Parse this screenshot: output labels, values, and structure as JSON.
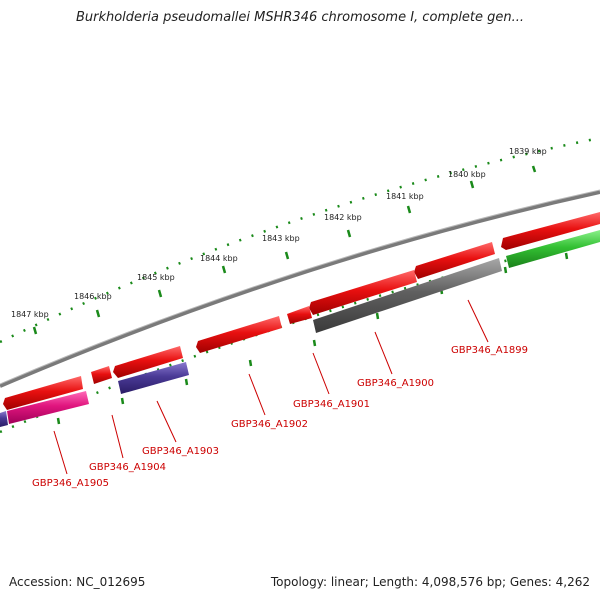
{
  "title": "Burkholderia pseudomallei MSHR346 chromosome I, complete gen...",
  "footer": {
    "accession": "Accession: NC_012695",
    "topology": "Topology: linear; Length: 4,098,576 bp; Genes: 4,262"
  },
  "colors": {
    "backbone": "#808080",
    "tick": "#1a8a1a",
    "label": "#cc0000",
    "red": "#e81010",
    "magenta": "#e0157e",
    "purple": "#4a3a96",
    "gray": "#606060",
    "green": "#33c033"
  },
  "kbp_labels": [
    "1839 kbp",
    "1840 kbp",
    "1841 kbp",
    "1842 kbp",
    "1843 kbp",
    "1844 kbp",
    "1845 kbp",
    "1846 kbp",
    "1847 kbp"
  ],
  "gene_labels": [
    "GBP346_A1899",
    "GBP346_A1900",
    "GBP346_A1901",
    "GBP346_A1902",
    "GBP346_A1903",
    "GBP346_A1904",
    "GBP346_A1905"
  ]
}
